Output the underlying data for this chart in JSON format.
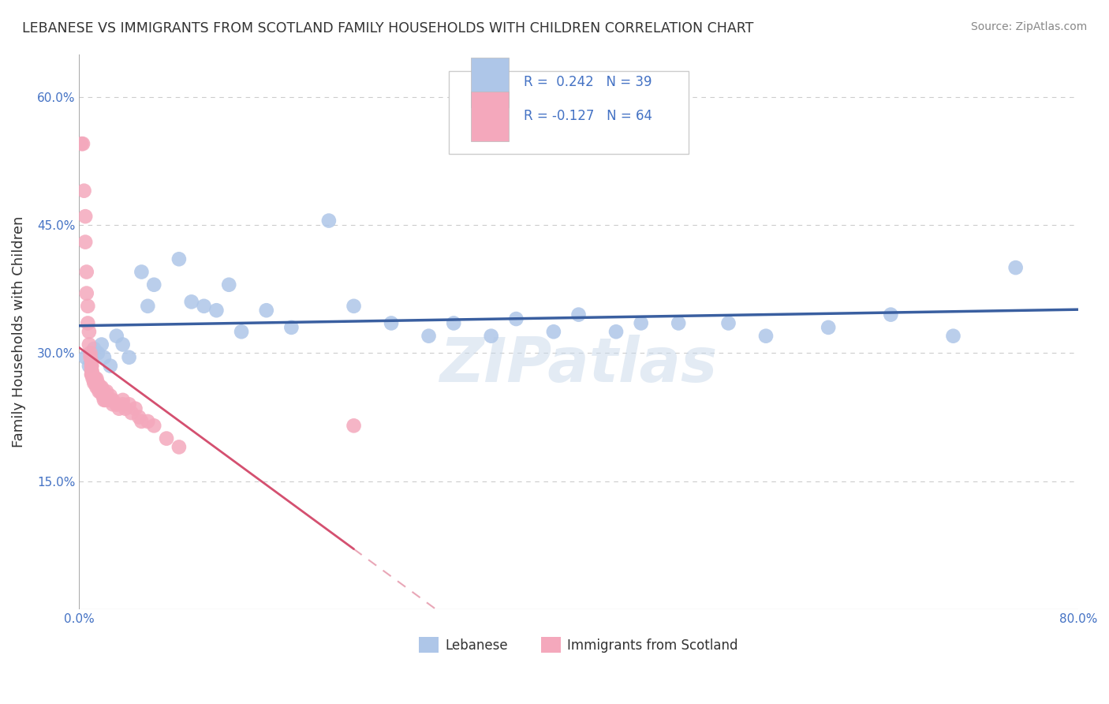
{
  "title": "LEBANESE VS IMMIGRANTS FROM SCOTLAND FAMILY HOUSEHOLDS WITH CHILDREN CORRELATION CHART",
  "source": "Source: ZipAtlas.com",
  "ylabel": "Family Households with Children",
  "xlim": [
    0.0,
    0.8
  ],
  "ylim": [
    0.0,
    0.65
  ],
  "xticks": [
    0.0,
    0.1,
    0.2,
    0.3,
    0.4,
    0.5,
    0.6,
    0.7,
    0.8
  ],
  "xticklabels": [
    "0.0%",
    "",
    "",
    "",
    "",
    "",
    "",
    "",
    "80.0%"
  ],
  "yticks": [
    0.0,
    0.15,
    0.3,
    0.45,
    0.6
  ],
  "yticklabels": [
    "",
    "15.0%",
    "30.0%",
    "45.0%",
    "60.0%"
  ],
  "legend_labels": [
    "Lebanese",
    "Immigrants from Scotland"
  ],
  "series": [
    {
      "name": "Lebanese",
      "R": 0.242,
      "N": 39,
      "color": "#aec6e8",
      "color_line": "#3a5fa0",
      "x": [
        0.005,
        0.008,
        0.012,
        0.015,
        0.018,
        0.02,
        0.025,
        0.03,
        0.035,
        0.04,
        0.05,
        0.055,
        0.06,
        0.08,
        0.09,
        0.1,
        0.11,
        0.12,
        0.13,
        0.15,
        0.17,
        0.2,
        0.22,
        0.25,
        0.28,
        0.3,
        0.33,
        0.35,
        0.38,
        0.4,
        0.43,
        0.45,
        0.48,
        0.52,
        0.55,
        0.6,
        0.65,
        0.7,
        0.75
      ],
      "y": [
        0.295,
        0.285,
        0.305,
        0.3,
        0.31,
        0.295,
        0.285,
        0.32,
        0.31,
        0.295,
        0.395,
        0.355,
        0.38,
        0.41,
        0.36,
        0.355,
        0.35,
        0.38,
        0.325,
        0.35,
        0.33,
        0.455,
        0.355,
        0.335,
        0.32,
        0.335,
        0.32,
        0.34,
        0.325,
        0.345,
        0.325,
        0.335,
        0.335,
        0.335,
        0.32,
        0.33,
        0.345,
        0.32,
        0.4
      ]
    },
    {
      "name": "Immigrants from Scotland",
      "R": -0.127,
      "N": 64,
      "color": "#f4a8bc",
      "color_line": "#d45070",
      "x": [
        0.002,
        0.003,
        0.004,
        0.005,
        0.005,
        0.006,
        0.006,
        0.007,
        0.007,
        0.008,
        0.008,
        0.009,
        0.009,
        0.01,
        0.01,
        0.01,
        0.01,
        0.01,
        0.01,
        0.01,
        0.011,
        0.011,
        0.012,
        0.012,
        0.013,
        0.013,
        0.014,
        0.014,
        0.015,
        0.015,
        0.016,
        0.016,
        0.017,
        0.017,
        0.018,
        0.018,
        0.019,
        0.019,
        0.02,
        0.02,
        0.02,
        0.021,
        0.022,
        0.023,
        0.025,
        0.025,
        0.027,
        0.027,
        0.03,
        0.03,
        0.032,
        0.035,
        0.035,
        0.037,
        0.04,
        0.042,
        0.045,
        0.048,
        0.05,
        0.055,
        0.06,
        0.07,
        0.08,
        0.22
      ],
      "y": [
        0.545,
        0.545,
        0.49,
        0.46,
        0.43,
        0.395,
        0.37,
        0.355,
        0.335,
        0.325,
        0.31,
        0.3,
        0.295,
        0.29,
        0.285,
        0.285,
        0.28,
        0.28,
        0.275,
        0.275,
        0.275,
        0.27,
        0.27,
        0.265,
        0.27,
        0.265,
        0.27,
        0.26,
        0.265,
        0.26,
        0.26,
        0.255,
        0.26,
        0.255,
        0.26,
        0.255,
        0.255,
        0.25,
        0.255,
        0.25,
        0.245,
        0.245,
        0.255,
        0.245,
        0.25,
        0.245,
        0.24,
        0.245,
        0.24,
        0.24,
        0.235,
        0.245,
        0.24,
        0.235,
        0.24,
        0.23,
        0.235,
        0.225,
        0.22,
        0.22,
        0.215,
        0.2,
        0.19,
        0.215
      ]
    }
  ],
  "watermark": "ZIPatlas",
  "background_color": "#ffffff",
  "grid_color": "#cccccc",
  "axis_color": "#4472c4"
}
